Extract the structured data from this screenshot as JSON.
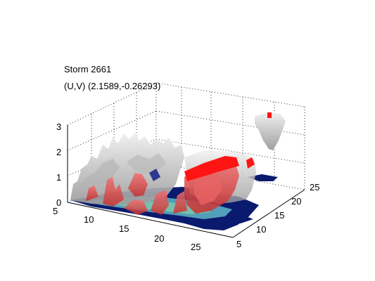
{
  "figure": {
    "title_line1": "Storm 2661",
    "title_line2": "(U,V) (2.1589,-0.26293)"
  },
  "axes": {
    "z_ticks": [
      "0",
      "1",
      "2",
      "3"
    ],
    "x_ticks": [
      "5",
      "10",
      "15",
      "20",
      "25"
    ],
    "y_ticks": [
      "5",
      "10",
      "15",
      "20",
      "25"
    ],
    "grid": "on"
  },
  "colors": {
    "background": "#ffffff",
    "gray_isosurface": "#c8c8c8",
    "red_isosurface": "#e23b3b",
    "red_top": "#ff1414",
    "base_navy": "#0a1a6e",
    "base_cyan": "#5fb7c7"
  }
}
